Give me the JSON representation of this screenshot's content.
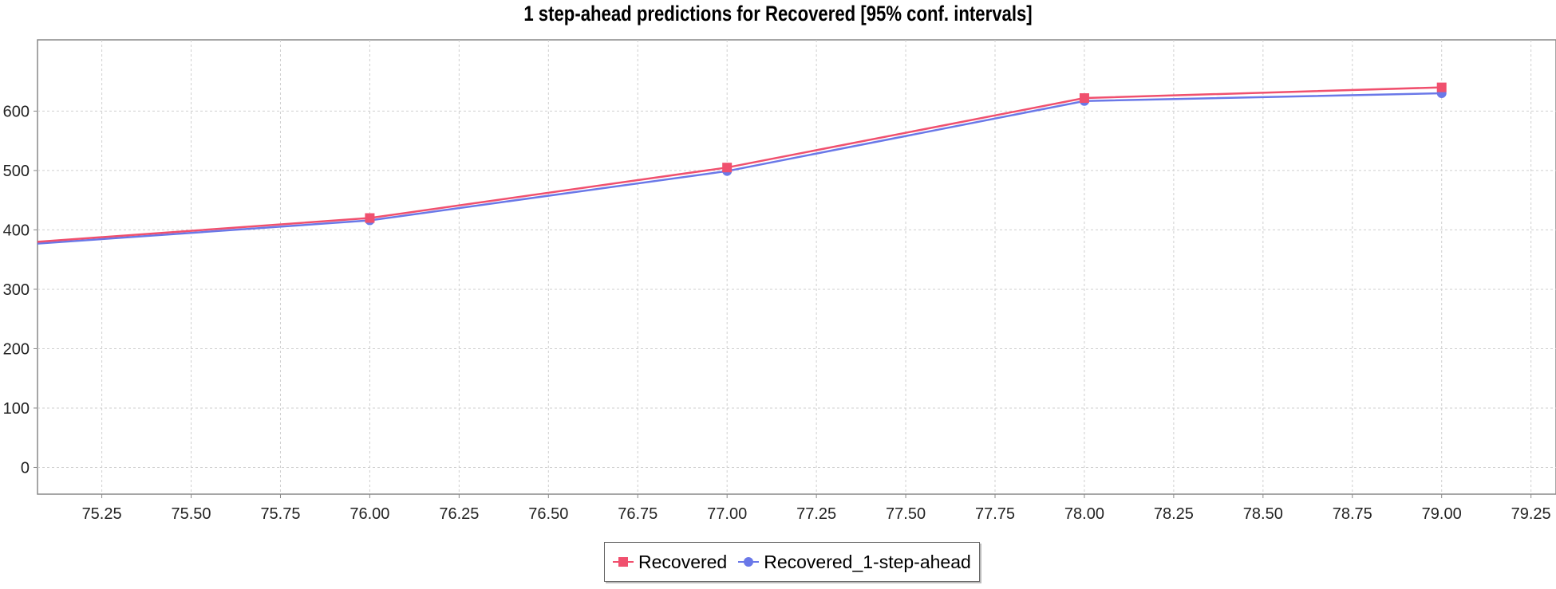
{
  "chart_data": {
    "type": "line",
    "title": "1 step-ahead predictions for Recovered [95% conf. intervals]",
    "xlabel": "",
    "ylabel": "",
    "xlim": [
      75.07,
      79.32
    ],
    "ylim": [
      -45,
      720
    ],
    "x_ticks": [
      "75.25",
      "75.50",
      "75.75",
      "76.00",
      "76.25",
      "76.50",
      "76.75",
      "77.00",
      "77.25",
      "77.50",
      "77.75",
      "78.00",
      "78.25",
      "78.50",
      "78.75",
      "79.00",
      "79.25"
    ],
    "y_ticks": [
      "0",
      "100",
      "200",
      "300",
      "400",
      "500",
      "600"
    ],
    "grid": true,
    "legend_position": "bottom",
    "series": [
      {
        "name": "Recovered",
        "color": "#f0506e",
        "marker": "square",
        "x": [
          75,
          76,
          77,
          78,
          79
        ],
        "y": [
          377,
          420,
          505,
          622,
          640
        ]
      },
      {
        "name": "Recovered_1-step-ahead",
        "color": "#6a78e8",
        "marker": "circle",
        "x": [
          75,
          76,
          77,
          78,
          79
        ],
        "y": [
          374,
          416,
          499,
          617,
          630
        ]
      }
    ]
  }
}
